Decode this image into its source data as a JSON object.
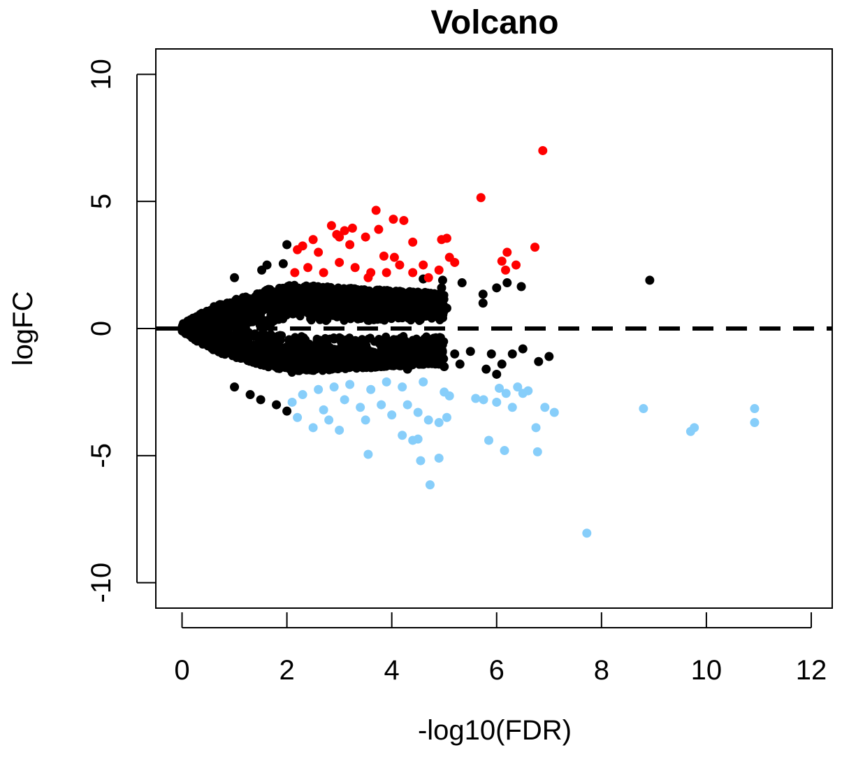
{
  "chart_data": {
    "type": "scatter",
    "title": "Volcano",
    "xlabel": "-log10(FDR)",
    "ylabel": "logFC",
    "xlim": [
      -0.5,
      12.4
    ],
    "ylim": [
      -11,
      11
    ],
    "x_ticks": [
      0,
      2,
      4,
      6,
      8,
      10,
      12
    ],
    "y_ticks": [
      -10,
      -5,
      0,
      5,
      10
    ],
    "grid": false,
    "legend": "none",
    "reference_line": {
      "y": 0,
      "style": "dashed",
      "color": "#000000"
    },
    "colors": {
      "up": "#ff0000",
      "down": "#87cefa",
      "ns": "#000000"
    },
    "series": [
      {
        "color": "#000000",
        "points": [
          [
            8.92,
            1.9
          ],
          [
            6.47,
            1.65
          ],
          [
            6.2,
            1.8
          ],
          [
            6.0,
            1.6
          ],
          [
            5.74,
            1.35
          ],
          [
            5.74,
            1.0
          ],
          [
            5.34,
            1.8
          ],
          [
            4.6,
            1.95
          ],
          [
            4.97,
            1.9
          ],
          [
            4.95,
            1.6
          ],
          [
            5.05,
            0.8
          ],
          [
            4.2,
            1.4
          ],
          [
            4.72,
            1.25
          ],
          [
            4.52,
            0.9
          ],
          [
            2.0,
            3.3
          ],
          [
            1.93,
            2.55
          ],
          [
            1.62,
            2.5
          ],
          [
            1.52,
            2.3
          ],
          [
            1.0,
            2.0
          ],
          [
            6.3,
            -1.0
          ],
          [
            6.8,
            -1.3
          ],
          [
            7.0,
            -1.1
          ],
          [
            6.5,
            -0.8
          ],
          [
            5.9,
            -1.0
          ],
          [
            6.1,
            -1.4
          ],
          [
            5.5,
            -0.9
          ],
          [
            5.2,
            -1.0
          ],
          [
            5.3,
            -1.4
          ],
          [
            5.0,
            -1.5
          ],
          [
            4.8,
            -1.0
          ],
          [
            4.9,
            -1.4
          ],
          [
            4.6,
            -1.2
          ],
          [
            4.3,
            -1.6
          ],
          [
            2.0,
            -3.25
          ],
          [
            1.8,
            -3.0
          ],
          [
            1.5,
            -2.8
          ],
          [
            1.3,
            -2.6
          ],
          [
            1.0,
            -2.3
          ],
          [
            5.8,
            -1.6
          ],
          [
            6.0,
            -1.8
          ]
        ]
      },
      {
        "color": "#ff0000",
        "points": [
          [
            6.88,
            7.0
          ],
          [
            5.7,
            5.15
          ],
          [
            6.73,
            3.2
          ],
          [
            6.1,
            2.65
          ],
          [
            6.2,
            3.0
          ],
          [
            6.17,
            2.3
          ],
          [
            6.37,
            2.5
          ],
          [
            3.7,
            4.65
          ],
          [
            4.03,
            4.3
          ],
          [
            4.23,
            4.25
          ],
          [
            3.75,
            3.9
          ],
          [
            2.85,
            4.05
          ],
          [
            3.0,
            3.6
          ],
          [
            3.1,
            3.85
          ],
          [
            3.25,
            3.95
          ],
          [
            3.5,
            3.6
          ],
          [
            4.95,
            3.5
          ],
          [
            5.05,
            3.55
          ],
          [
            4.4,
            3.4
          ],
          [
            2.3,
            3.25
          ],
          [
            2.5,
            3.5
          ],
          [
            2.95,
            3.7
          ],
          [
            3.2,
            3.3
          ],
          [
            2.6,
            3.0
          ],
          [
            2.2,
            3.1
          ],
          [
            5.1,
            2.8
          ],
          [
            5.2,
            2.6
          ],
          [
            4.9,
            2.3
          ],
          [
            4.6,
            2.5
          ],
          [
            4.05,
            2.8
          ],
          [
            3.85,
            2.85
          ],
          [
            4.15,
            2.5
          ],
          [
            3.6,
            2.2
          ],
          [
            3.3,
            2.4
          ],
          [
            3.0,
            2.6
          ],
          [
            2.7,
            2.2
          ],
          [
            2.4,
            2.4
          ],
          [
            2.15,
            2.2
          ],
          [
            4.4,
            2.2
          ],
          [
            4.7,
            2.0
          ],
          [
            3.9,
            2.2
          ],
          [
            3.55,
            2.0
          ]
        ]
      },
      {
        "color": "#87cefa",
        "points": [
          [
            7.72,
            -8.05
          ],
          [
            4.73,
            -6.15
          ],
          [
            4.55,
            -5.2
          ],
          [
            4.9,
            -5.1
          ],
          [
            3.55,
            -4.95
          ],
          [
            6.78,
            -4.85
          ],
          [
            6.15,
            -4.8
          ],
          [
            5.85,
            -4.4
          ],
          [
            4.4,
            -4.4
          ],
          [
            4.5,
            -4.35
          ],
          [
            4.2,
            -4.2
          ],
          [
            6.75,
            -3.9
          ],
          [
            9.7,
            -4.05
          ],
          [
            9.77,
            -3.9
          ],
          [
            10.92,
            -3.7
          ],
          [
            10.92,
            -3.15
          ],
          [
            8.8,
            -3.15
          ],
          [
            7.1,
            -3.3
          ],
          [
            6.92,
            -3.1
          ],
          [
            6.3,
            -3.1
          ],
          [
            6.5,
            -2.55
          ],
          [
            6.6,
            -2.45
          ],
          [
            6.4,
            -2.3
          ],
          [
            6.05,
            -2.35
          ],
          [
            6.18,
            -2.55
          ],
          [
            6.0,
            -2.9
          ],
          [
            5.75,
            -2.8
          ],
          [
            5.6,
            -2.75
          ],
          [
            5.1,
            -2.65
          ],
          [
            4.9,
            -3.7
          ],
          [
            4.7,
            -3.6
          ],
          [
            5.05,
            -3.5
          ],
          [
            4.5,
            -3.3
          ],
          [
            4.3,
            -3.0
          ],
          [
            4.0,
            -3.4
          ],
          [
            3.8,
            -3.0
          ],
          [
            3.5,
            -3.6
          ],
          [
            3.0,
            -4.0
          ],
          [
            2.5,
            -3.9
          ],
          [
            2.2,
            -3.5
          ],
          [
            2.1,
            -2.9
          ],
          [
            2.3,
            -2.6
          ],
          [
            2.6,
            -2.4
          ],
          [
            2.9,
            -2.3
          ],
          [
            3.2,
            -2.2
          ],
          [
            3.6,
            -2.4
          ],
          [
            3.9,
            -2.1
          ],
          [
            4.2,
            -2.3
          ],
          [
            4.6,
            -2.1
          ],
          [
            5.0,
            -2.5
          ],
          [
            2.7,
            -3.2
          ],
          [
            3.1,
            -2.8
          ],
          [
            3.4,
            -3.1
          ],
          [
            2.8,
            -3.6
          ]
        ]
      }
    ]
  }
}
